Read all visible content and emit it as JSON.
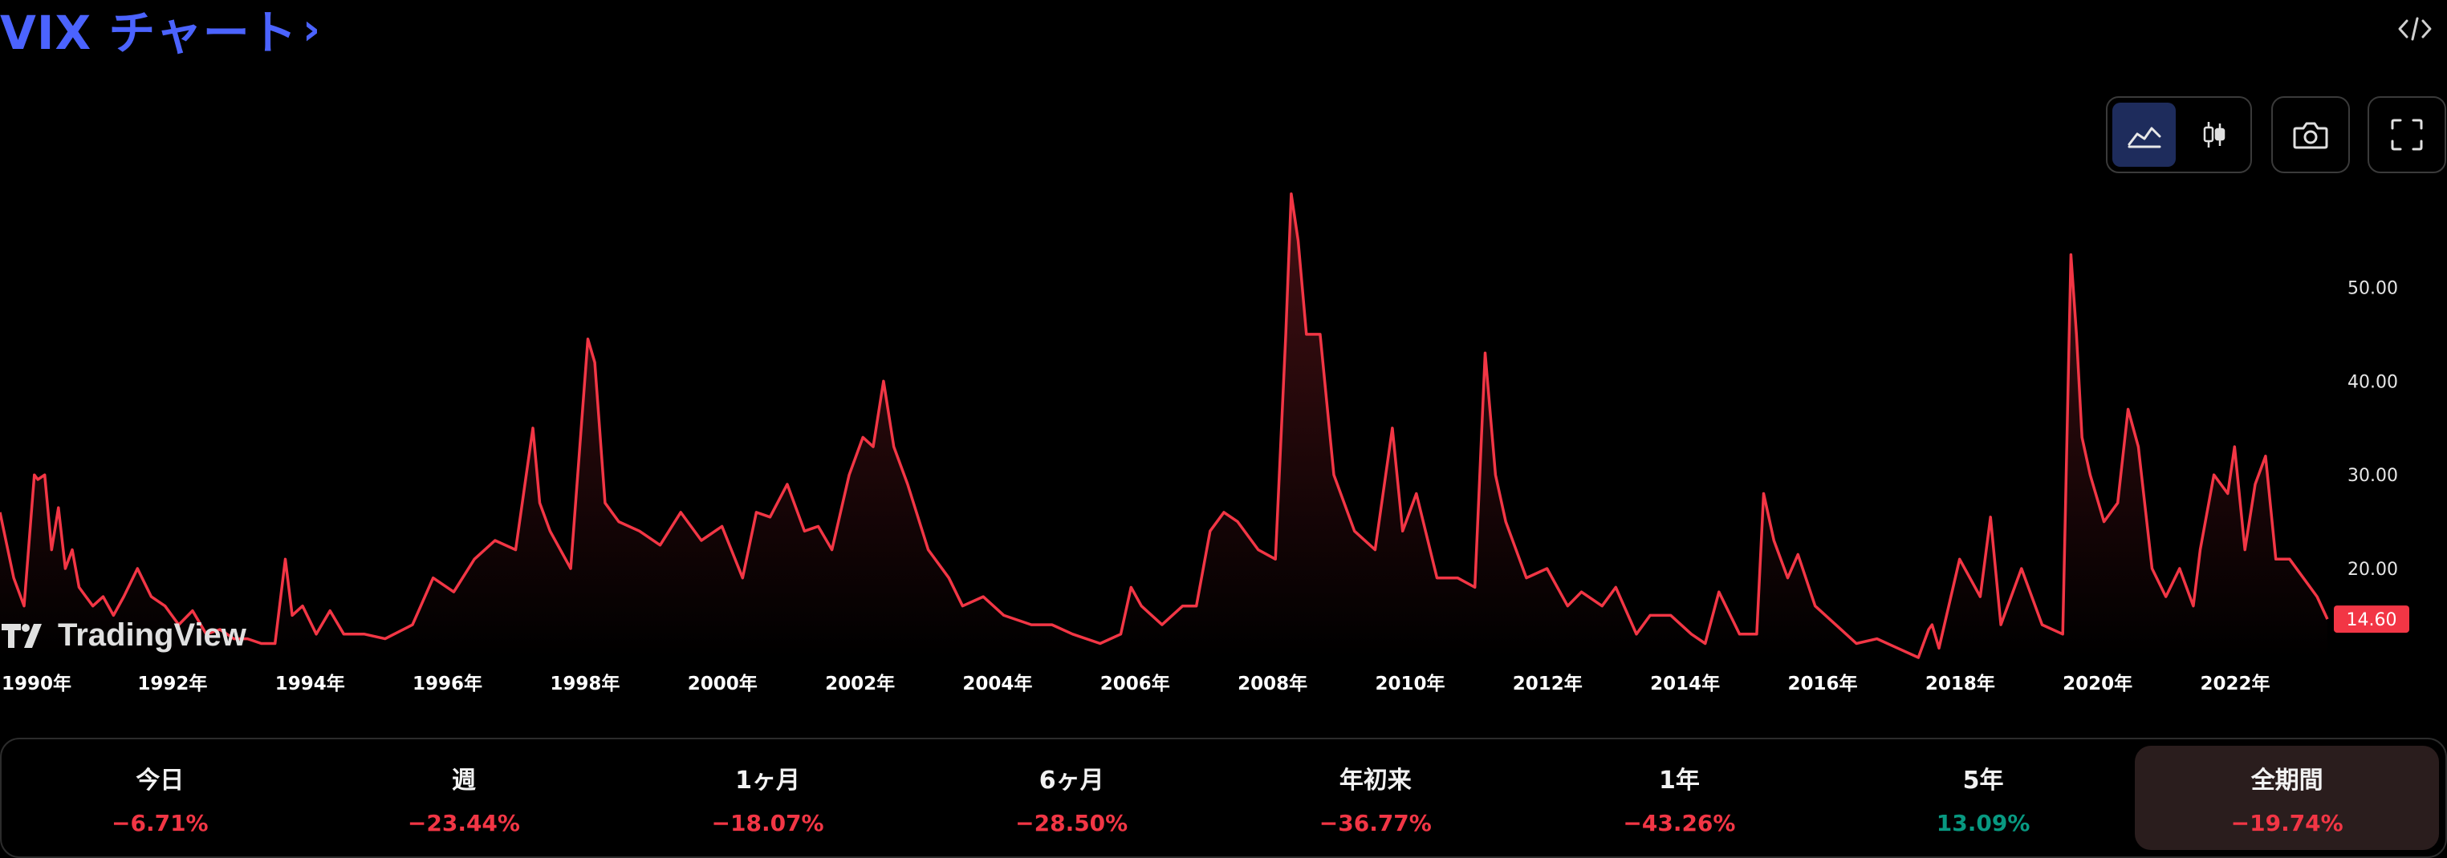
{
  "header": {
    "title": "VIX チャート",
    "title_chevron": "›",
    "embed_icon": "code-embed-icon"
  },
  "toolbar": {
    "chart_type_buttons": [
      {
        "icon": "area-chart-icon",
        "active": true
      },
      {
        "icon": "candlestick-icon",
        "active": false
      }
    ],
    "snapshot_icon": "camera-icon",
    "fullscreen_icon": "fullscreen-icon"
  },
  "watermark": {
    "text": "TradingView"
  },
  "colors": {
    "line": "#f23645",
    "title": "#4b63ff",
    "negative": "#f23645",
    "positive": "#089981",
    "price_label_bg": "#f23645"
  },
  "chart_data": {
    "type": "area",
    "title": "VIX チャート",
    "xlabel": "",
    "ylabel": "",
    "y_axis_side": "right",
    "ylim": [
      10.5,
      61
    ],
    "x_range": [
      1990.0,
      2023.85
    ],
    "y_ticks": [
      20,
      30,
      40,
      50
    ],
    "y_tick_labels": [
      "20.00",
      "30.00",
      "40.00",
      "50.00"
    ],
    "x_ticks": [
      1990,
      1992,
      1994,
      1996,
      1998,
      2000,
      2002,
      2004,
      2006,
      2008,
      2010,
      2012,
      2014,
      2016,
      2018,
      2020,
      2022
    ],
    "x_tick_labels": [
      "1990年",
      "1992年",
      "1994年",
      "1996年",
      "1998年",
      "2000年",
      "2002年",
      "2004年",
      "2006年",
      "2008年",
      "2010年",
      "2012年",
      "2014年",
      "2016年",
      "2018年",
      "2020年",
      "2022年"
    ],
    "grid": false,
    "last_value": 14.6,
    "last_value_label": "14.60",
    "series": [
      {
        "x": [
          1990.0,
          1990.2,
          1990.35,
          1990.5,
          1990.55,
          1990.65,
          1990.75,
          1990.85,
          1990.95,
          1991.05,
          1991.15,
          1991.25,
          1991.35,
          1991.5,
          1991.65,
          1991.8,
          1992.0,
          1992.2,
          1992.4,
          1992.6,
          1992.8,
          1993.0,
          1993.2,
          1993.4,
          1993.6,
          1993.8,
          1994.0,
          1994.15,
          1994.25,
          1994.4,
          1994.6,
          1994.8,
          1995.0,
          1995.3,
          1995.6,
          1996.0,
          1996.3,
          1996.6,
          1996.9,
          1997.2,
          1997.5,
          1997.75,
          1997.85,
          1998.0,
          1998.3,
          1998.55,
          1998.65,
          1998.8,
          1999.0,
          1999.3,
          1999.6,
          1999.9,
          2000.2,
          2000.5,
          2000.8,
          2001.0,
          2001.2,
          2001.45,
          2001.7,
          2001.9,
          2002.1,
          2002.35,
          2002.55,
          2002.7,
          2002.85,
          2003.0,
          2003.2,
          2003.5,
          2003.8,
          2004.0,
          2004.3,
          2004.6,
          2005.0,
          2005.3,
          2005.6,
          2006.0,
          2006.3,
          2006.45,
          2006.6,
          2006.9,
          2007.2,
          2007.4,
          2007.6,
          2007.8,
          2008.0,
          2008.3,
          2008.55,
          2008.7,
          2008.78,
          2008.88,
          2009.0,
          2009.2,
          2009.4,
          2009.7,
          2010.0,
          2010.25,
          2010.4,
          2010.6,
          2010.9,
          2011.2,
          2011.45,
          2011.6,
          2011.75,
          2011.9,
          2012.2,
          2012.5,
          2012.8,
          2013.0,
          2013.3,
          2013.5,
          2013.8,
          2014.0,
          2014.3,
          2014.6,
          2014.8,
          2015.0,
          2015.3,
          2015.55,
          2015.65,
          2015.8,
          2016.0,
          2016.15,
          2016.4,
          2016.7,
          2017.0,
          2017.3,
          2017.6,
          2017.9,
          2018.05,
          2018.1,
          2018.2,
          2018.5,
          2018.8,
          2018.95,
          2019.1,
          2019.4,
          2019.7,
          2020.0,
          2020.12,
          2020.2,
          2020.28,
          2020.4,
          2020.6,
          2020.8,
          2020.95,
          2021.1,
          2021.3,
          2021.5,
          2021.7,
          2021.9,
          2022.0,
          2022.2,
          2022.4,
          2022.5,
          2022.65,
          2022.8,
          2022.95,
          2023.1,
          2023.3,
          2023.5,
          2023.7,
          2023.85
        ],
        "values": [
          26,
          19,
          16,
          30,
          29.5,
          30,
          22,
          26.5,
          20,
          22,
          18,
          17,
          16,
          17,
          15,
          17,
          20,
          17,
          16,
          14,
          15.5,
          13,
          13.5,
          12.5,
          12.5,
          12,
          12,
          21,
          15,
          16,
          13,
          15.5,
          13,
          13,
          12.5,
          14,
          19,
          17.5,
          21,
          23,
          22,
          35,
          27,
          24,
          20,
          44.5,
          42,
          27,
          25,
          24,
          22.5,
          26,
          23,
          24.5,
          19,
          26,
          25.5,
          29,
          24,
          24.5,
          22,
          30,
          34,
          33,
          40,
          33,
          29,
          22,
          19,
          16,
          17,
          15,
          14,
          14,
          13,
          12,
          13,
          18,
          16,
          14,
          16,
          16,
          24,
          26,
          25,
          22,
          21,
          45,
          60,
          55,
          45,
          45,
          30,
          24,
          22,
          35,
          24,
          28,
          19,
          19,
          18,
          43,
          30,
          25,
          19,
          20,
          16,
          17.5,
          16,
          18,
          13,
          15,
          15,
          13,
          12,
          17.5,
          13,
          13,
          28,
          23,
          19,
          21.5,
          16,
          14,
          12,
          12.5,
          11.5,
          10.5,
          13.5,
          14,
          11.5,
          21,
          17,
          25.5,
          14,
          20,
          14,
          13,
          53.5,
          45,
          34,
          30,
          25,
          27,
          37,
          33,
          20,
          17,
          20,
          16,
          22,
          30,
          28,
          33,
          22,
          29,
          32,
          21,
          21,
          19,
          17,
          14.6
        ]
      }
    ]
  },
  "stats": [
    {
      "label": "今日",
      "value": "−6.71%",
      "sign": "negative",
      "active": false
    },
    {
      "label": "週",
      "value": "−23.44%",
      "sign": "negative",
      "active": false
    },
    {
      "label": "1ヶ月",
      "value": "−18.07%",
      "sign": "negative",
      "active": false
    },
    {
      "label": "6ヶ月",
      "value": "−28.50%",
      "sign": "negative",
      "active": false
    },
    {
      "label": "年初来",
      "value": "−36.77%",
      "sign": "negative",
      "active": false
    },
    {
      "label": "1年",
      "value": "−43.26%",
      "sign": "negative",
      "active": false
    },
    {
      "label": "5年",
      "value": "13.09%",
      "sign": "positive",
      "active": false
    },
    {
      "label": "全期間",
      "value": "−19.74%",
      "sign": "negative",
      "active": true
    }
  ]
}
